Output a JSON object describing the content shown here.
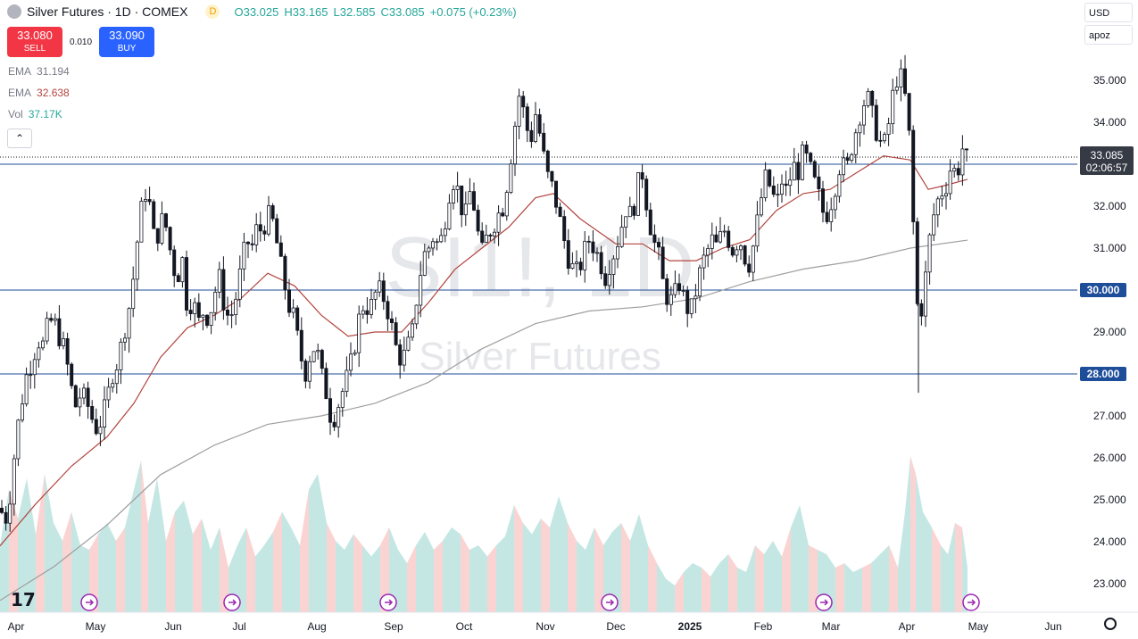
{
  "header": {
    "symbol_title": "Silver Futures · 1D · COMEX",
    "delay_badge": "D",
    "open": "O33.025",
    "high": "H33.165",
    "low": "L32.585",
    "close": "C33.085",
    "change": "+0.075 (+0.23%)"
  },
  "trade": {
    "sell_price": "33.080",
    "sell_label": "SELL",
    "spread": "0.010",
    "buy_price": "33.090",
    "buy_label": "BUY"
  },
  "indicators": [
    {
      "name": "EMA",
      "value": "31.194",
      "color": "#787b86"
    },
    {
      "name": "EMA",
      "value": "32.638",
      "color": "#b2453f"
    },
    {
      "name": "Vol",
      "value": "37.17K",
      "color": "#26a69a"
    }
  ],
  "right_controls": {
    "currency": "USD",
    "scale": "apoz"
  },
  "watermark": {
    "big": "SI1!, 1D",
    "small": "Silver Futures"
  },
  "chart_data": {
    "type": "candlestick",
    "y_ticks": [
      "35.000",
      "34.000",
      "33.000",
      "32.000",
      "31.000",
      "30.000",
      "29.000",
      "28.000",
      "27.000",
      "26.000",
      "25.000",
      "24.000",
      "23.000"
    ],
    "ylim": [
      22.3,
      35.9
    ],
    "x_ticks": [
      "Apr",
      "May",
      "Jun",
      "Jul",
      "Aug",
      "Sep",
      "Oct",
      "Nov",
      "Dec",
      "2025",
      "Feb",
      "Mar",
      "Apr",
      "May",
      "Jun"
    ],
    "horizontal_levels": [
      {
        "price": 33.0,
        "label": "33.000"
      },
      {
        "price": 30.0,
        "label": "30.000"
      },
      {
        "price": 28.0,
        "label": "28.000"
      }
    ],
    "last_price": {
      "price": 33.085,
      "label": "33.085",
      "countdown": "02:06:57"
    },
    "up_color": "#26a69a",
    "down_color": "#ef5350",
    "ema_fast_color": "#b2453f",
    "ema_slow_color": "#9e9e9e",
    "close_path": [
      [
        0,
        24.8
      ],
      [
        6,
        24.5
      ],
      [
        12,
        25.2
      ],
      [
        18,
        26.5
      ],
      [
        24,
        27.3
      ],
      [
        30,
        28.0
      ],
      [
        36,
        28.3
      ],
      [
        42,
        28.8
      ],
      [
        48,
        28.7
      ],
      [
        54,
        29.2
      ],
      [
        60,
        29.3
      ],
      [
        66,
        28.9
      ],
      [
        72,
        28.6
      ],
      [
        78,
        27.9
      ],
      [
        84,
        27.2
      ],
      [
        90,
        27.5
      ],
      [
        96,
        27.4
      ],
      [
        102,
        27.0
      ],
      [
        108,
        26.7
      ],
      [
        114,
        26.9
      ],
      [
        120,
        27.4
      ],
      [
        126,
        28.0
      ],
      [
        132,
        28.3
      ],
      [
        138,
        28.9
      ],
      [
        144,
        29.5
      ],
      [
        150,
        30.4
      ],
      [
        156,
        31.6
      ],
      [
        162,
        32.4
      ],
      [
        168,
        32.0
      ],
      [
        174,
        31.0
      ],
      [
        180,
        31.7
      ],
      [
        186,
        31.5
      ],
      [
        192,
        30.8
      ],
      [
        198,
        30.2
      ],
      [
        204,
        30.8
      ],
      [
        210,
        29.5
      ],
      [
        216,
        29.8
      ],
      [
        222,
        29.2
      ],
      [
        228,
        29.5
      ],
      [
        234,
        29.3
      ],
      [
        240,
        29.9
      ],
      [
        246,
        30.3
      ],
      [
        252,
        29.5
      ],
      [
        258,
        29.3
      ],
      [
        264,
        29.8
      ],
      [
        270,
        30.5
      ],
      [
        276,
        31.2
      ],
      [
        282,
        31.0
      ],
      [
        288,
        31.5
      ],
      [
        294,
        31.4
      ],
      [
        300,
        31.8
      ],
      [
        306,
        31.6
      ],
      [
        312,
        30.9
      ],
      [
        318,
        30.2
      ],
      [
        324,
        29.6
      ],
      [
        330,
        29.3
      ],
      [
        336,
        28.5
      ],
      [
        342,
        28.0
      ],
      [
        348,
        28.5
      ],
      [
        354,
        28.7
      ],
      [
        360,
        28.0
      ],
      [
        366,
        27.5
      ],
      [
        372,
        26.8
      ],
      [
        378,
        27.2
      ],
      [
        384,
        27.6
      ],
      [
        390,
        28.0
      ],
      [
        396,
        28.5
      ],
      [
        402,
        29.3
      ],
      [
        408,
        29.7
      ],
      [
        414,
        29.5
      ],
      [
        420,
        29.9
      ],
      [
        426,
        30.0
      ],
      [
        432,
        29.7
      ],
      [
        438,
        29.2
      ],
      [
        444,
        28.6
      ],
      [
        450,
        28.3
      ],
      [
        456,
        28.6
      ],
      [
        462,
        29.0
      ],
      [
        468,
        30.0
      ],
      [
        474,
        30.8
      ],
      [
        480,
        31.0
      ],
      [
        486,
        31.3
      ],
      [
        492,
        31.0
      ],
      [
        498,
        31.6
      ],
      [
        504,
        32.4
      ],
      [
        510,
        32.7
      ],
      [
        516,
        32.0
      ],
      [
        522,
        31.8
      ],
      [
        528,
        32.5
      ],
      [
        534,
        31.5
      ],
      [
        540,
        30.9
      ],
      [
        546,
        31.3
      ],
      [
        552,
        31.5
      ],
      [
        558,
        31.8
      ],
      [
        564,
        32.0
      ],
      [
        570,
        32.8
      ],
      [
        576,
        33.8
      ],
      [
        582,
        34.7
      ],
      [
        588,
        34.1
      ],
      [
        594,
        33.5
      ],
      [
        600,
        34.2
      ],
      [
        606,
        33.6
      ],
      [
        612,
        32.8
      ],
      [
        618,
        32.5
      ],
      [
        624,
        32.0
      ],
      [
        630,
        31.4
      ],
      [
        636,
        30.8
      ],
      [
        642,
        30.5
      ],
      [
        648,
        30.4
      ],
      [
        654,
        30.9
      ],
      [
        660,
        31.2
      ],
      [
        666,
        31.0
      ],
      [
        672,
        30.7
      ],
      [
        678,
        30.3
      ],
      [
        684,
        30.7
      ],
      [
        690,
        31.0
      ],
      [
        696,
        31.5
      ],
      [
        702,
        32.0
      ],
      [
        708,
        31.7
      ],
      [
        714,
        32.5
      ],
      [
        720,
        32.8
      ],
      [
        726,
        31.8
      ],
      [
        732,
        31.2
      ],
      [
        738,
        30.8
      ],
      [
        744,
        30.0
      ],
      [
        750,
        29.7
      ],
      [
        756,
        29.9
      ],
      [
        762,
        30.2
      ],
      [
        768,
        29.6
      ],
      [
        774,
        29.5
      ],
      [
        780,
        30.0
      ],
      [
        786,
        30.6
      ],
      [
        792,
        30.9
      ],
      [
        798,
        31.2
      ],
      [
        804,
        31.0
      ],
      [
        810,
        31.5
      ],
      [
        816,
        31.2
      ],
      [
        822,
        30.9
      ],
      [
        828,
        31.3
      ],
      [
        834,
        30.8
      ],
      [
        840,
        30.6
      ],
      [
        846,
        31.3
      ],
      [
        852,
        32.1
      ],
      [
        858,
        32.7
      ],
      [
        864,
        32.4
      ],
      [
        870,
        32.0
      ],
      [
        876,
        32.6
      ],
      [
        882,
        32.3
      ],
      [
        888,
        33.0
      ],
      [
        894,
        32.8
      ],
      [
        900,
        33.3
      ],
      [
        906,
        33.0
      ],
      [
        912,
        32.6
      ],
      [
        918,
        32.2
      ],
      [
        924,
        31.7
      ],
      [
        930,
        32.0
      ],
      [
        936,
        32.5
      ],
      [
        942,
        33.1
      ],
      [
        948,
        32.8
      ],
      [
        954,
        33.4
      ],
      [
        960,
        33.9
      ],
      [
        966,
        34.4
      ],
      [
        972,
        34.6
      ],
      [
        978,
        34.1
      ],
      [
        984,
        33.6
      ],
      [
        990,
        33.4
      ],
      [
        996,
        34.0
      ],
      [
        1002,
        34.9
      ],
      [
        1008,
        35.2
      ],
      [
        1014,
        34.6
      ],
      [
        1020,
        33.4
      ],
      [
        1026,
        30.0
      ],
      [
        1030,
        29.2
      ],
      [
        1034,
        29.8
      ],
      [
        1038,
        30.5
      ],
      [
        1042,
        31.3
      ],
      [
        1048,
        32.0
      ],
      [
        1054,
        32.3
      ],
      [
        1060,
        32.5
      ],
      [
        1066,
        33.0
      ],
      [
        1072,
        32.7
      ],
      [
        1078,
        33.4
      ],
      [
        1084,
        33.085
      ]
    ],
    "ema_fast": [
      [
        0,
        23.9
      ],
      [
        40,
        24.9
      ],
      [
        80,
        25.8
      ],
      [
        120,
        26.5
      ],
      [
        150,
        27.3
      ],
      [
        180,
        28.4
      ],
      [
        210,
        29.1
      ],
      [
        240,
        29.4
      ],
      [
        270,
        29.8
      ],
      [
        300,
        30.4
      ],
      [
        330,
        30.1
      ],
      [
        360,
        29.4
      ],
      [
        390,
        28.9
      ],
      [
        420,
        29.0
      ],
      [
        450,
        29.0
      ],
      [
        480,
        29.7
      ],
      [
        510,
        30.5
      ],
      [
        540,
        31.0
      ],
      [
        570,
        31.5
      ],
      [
        600,
        32.2
      ],
      [
        620,
        32.3
      ],
      [
        650,
        31.7
      ],
      [
        690,
        31.1
      ],
      [
        720,
        31.1
      ],
      [
        750,
        30.7
      ],
      [
        780,
        30.7
      ],
      [
        810,
        31.0
      ],
      [
        840,
        31.2
      ],
      [
        870,
        31.9
      ],
      [
        900,
        32.3
      ],
      [
        930,
        32.4
      ],
      [
        960,
        32.8
      ],
      [
        990,
        33.2
      ],
      [
        1020,
        33.1
      ],
      [
        1040,
        32.4
      ],
      [
        1060,
        32.5
      ],
      [
        1084,
        32.64
      ]
    ],
    "ema_slow": [
      [
        0,
        22.6
      ],
      [
        60,
        23.4
      ],
      [
        120,
        24.4
      ],
      [
        180,
        25.6
      ],
      [
        240,
        26.3
      ],
      [
        300,
        26.8
      ],
      [
        360,
        27.0
      ],
      [
        420,
        27.3
      ],
      [
        480,
        27.8
      ],
      [
        540,
        28.6
      ],
      [
        600,
        29.2
      ],
      [
        660,
        29.5
      ],
      [
        720,
        29.6
      ],
      [
        780,
        29.8
      ],
      [
        840,
        30.2
      ],
      [
        900,
        30.5
      ],
      [
        960,
        30.7
      ],
      [
        1020,
        31.0
      ],
      [
        1084,
        31.19
      ]
    ],
    "volume_path": [
      [
        0,
        0.3
      ],
      [
        10,
        0.55
      ],
      [
        20,
        0.42
      ],
      [
        30,
        0.6
      ],
      [
        40,
        0.35
      ],
      [
        50,
        0.62
      ],
      [
        60,
        0.4
      ],
      [
        70,
        0.32
      ],
      [
        80,
        0.45
      ],
      [
        90,
        0.3
      ],
      [
        100,
        0.28
      ],
      [
        110,
        0.35
      ],
      [
        120,
        0.4
      ],
      [
        130,
        0.32
      ],
      [
        140,
        0.38
      ],
      [
        150,
        0.55
      ],
      [
        158,
        0.68
      ],
      [
        166,
        0.4
      ],
      [
        176,
        0.6
      ],
      [
        186,
        0.32
      ],
      [
        196,
        0.45
      ],
      [
        206,
        0.5
      ],
      [
        216,
        0.35
      ],
      [
        226,
        0.42
      ],
      [
        236,
        0.28
      ],
      [
        246,
        0.38
      ],
      [
        256,
        0.2
      ],
      [
        266,
        0.3
      ],
      [
        276,
        0.38
      ],
      [
        286,
        0.25
      ],
      [
        296,
        0.3
      ],
      [
        306,
        0.36
      ],
      [
        316,
        0.45
      ],
      [
        326,
        0.38
      ],
      [
        336,
        0.3
      ],
      [
        346,
        0.55
      ],
      [
        356,
        0.62
      ],
      [
        366,
        0.4
      ],
      [
        376,
        0.32
      ],
      [
        386,
        0.28
      ],
      [
        396,
        0.35
      ],
      [
        406,
        0.3
      ],
      [
        416,
        0.25
      ],
      [
        426,
        0.3
      ],
      [
        436,
        0.38
      ],
      [
        446,
        0.28
      ],
      [
        456,
        0.22
      ],
      [
        466,
        0.3
      ],
      [
        476,
        0.36
      ],
      [
        486,
        0.28
      ],
      [
        496,
        0.32
      ],
      [
        506,
        0.38
      ],
      [
        516,
        0.35
      ],
      [
        526,
        0.28
      ],
      [
        536,
        0.3
      ],
      [
        546,
        0.25
      ],
      [
        556,
        0.3
      ],
      [
        566,
        0.34
      ],
      [
        576,
        0.48
      ],
      [
        586,
        0.4
      ],
      [
        596,
        0.35
      ],
      [
        606,
        0.42
      ],
      [
        616,
        0.38
      ],
      [
        626,
        0.52
      ],
      [
        636,
        0.4
      ],
      [
        646,
        0.32
      ],
      [
        656,
        0.28
      ],
      [
        666,
        0.38
      ],
      [
        676,
        0.3
      ],
      [
        686,
        0.36
      ],
      [
        696,
        0.4
      ],
      [
        706,
        0.32
      ],
      [
        716,
        0.44
      ],
      [
        726,
        0.3
      ],
      [
        736,
        0.22
      ],
      [
        746,
        0.15
      ],
      [
        756,
        0.12
      ],
      [
        766,
        0.18
      ],
      [
        776,
        0.22
      ],
      [
        786,
        0.2
      ],
      [
        796,
        0.16
      ],
      [
        806,
        0.22
      ],
      [
        816,
        0.26
      ],
      [
        826,
        0.2
      ],
      [
        836,
        0.18
      ],
      [
        846,
        0.3
      ],
      [
        856,
        0.26
      ],
      [
        866,
        0.32
      ],
      [
        876,
        0.25
      ],
      [
        886,
        0.38
      ],
      [
        896,
        0.48
      ],
      [
        906,
        0.3
      ],
      [
        916,
        0.28
      ],
      [
        926,
        0.26
      ],
      [
        936,
        0.2
      ],
      [
        946,
        0.22
      ],
      [
        956,
        0.18
      ],
      [
        966,
        0.2
      ],
      [
        976,
        0.22
      ],
      [
        986,
        0.26
      ],
      [
        996,
        0.3
      ],
      [
        1006,
        0.2
      ],
      [
        1014,
        0.45
      ],
      [
        1020,
        0.7
      ],
      [
        1026,
        0.62
      ],
      [
        1034,
        0.45
      ],
      [
        1044,
        0.38
      ],
      [
        1054,
        0.3
      ],
      [
        1062,
        0.26
      ],
      [
        1070,
        0.4
      ],
      [
        1078,
        0.38
      ],
      [
        1084,
        0.2
      ]
    ],
    "event_markers_x": [
      100,
      260,
      435,
      683,
      923,
      1088
    ]
  }
}
